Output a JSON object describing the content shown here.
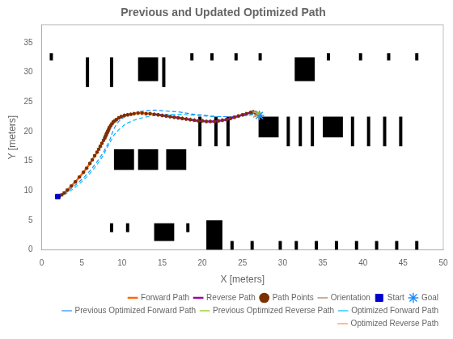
{
  "chart_data": {
    "type": "line",
    "title": "Previous and Updated Optimized Path",
    "x_label": "X [meters]",
    "y_label": "Y [meters]",
    "xlim": [
      0,
      50
    ],
    "ylim": [
      0,
      38
    ],
    "xticks": [
      0,
      5,
      10,
      15,
      20,
      25,
      30,
      35,
      40,
      45,
      50
    ],
    "yticks": [
      0,
      5,
      10,
      15,
      20,
      25,
      30,
      35
    ],
    "grid": false,
    "legend": "bottom",
    "obstacles": {
      "color": "#000000",
      "rectangles": [
        {
          "x": 1.0,
          "y": 32.0,
          "w": 0.4,
          "h": 1.2
        },
        {
          "x": 5.5,
          "y": 27.5,
          "w": 0.4,
          "h": 5.0
        },
        {
          "x": 8.5,
          "y": 27.5,
          "w": 0.4,
          "h": 5.0
        },
        {
          "x": 12.0,
          "y": 28.5,
          "w": 2.5,
          "h": 4.0
        },
        {
          "x": 15.0,
          "y": 27.5,
          "w": 0.4,
          "h": 5.0
        },
        {
          "x": 18.5,
          "y": 32.0,
          "w": 0.4,
          "h": 1.2
        },
        {
          "x": 21.0,
          "y": 32.0,
          "w": 0.4,
          "h": 1.2
        },
        {
          "x": 24.0,
          "y": 32.0,
          "w": 0.4,
          "h": 1.2
        },
        {
          "x": 27.0,
          "y": 32.0,
          "w": 0.4,
          "h": 1.2
        },
        {
          "x": 31.5,
          "y": 28.5,
          "w": 2.5,
          "h": 4.0
        },
        {
          "x": 35.5,
          "y": 32.0,
          "w": 0.4,
          "h": 1.2
        },
        {
          "x": 39.5,
          "y": 32.0,
          "w": 0.4,
          "h": 1.2
        },
        {
          "x": 43.0,
          "y": 32.0,
          "w": 0.4,
          "h": 1.2
        },
        {
          "x": 46.5,
          "y": 32.0,
          "w": 0.4,
          "h": 1.2
        },
        {
          "x": 9.0,
          "y": 13.5,
          "w": 2.5,
          "h": 3.5
        },
        {
          "x": 12.0,
          "y": 13.5,
          "w": 2.5,
          "h": 3.5
        },
        {
          "x": 15.5,
          "y": 13.5,
          "w": 2.5,
          "h": 3.5
        },
        {
          "x": 19.5,
          "y": 17.5,
          "w": 0.4,
          "h": 5.0
        },
        {
          "x": 21.5,
          "y": 17.5,
          "w": 0.4,
          "h": 5.0
        },
        {
          "x": 23.0,
          "y": 17.5,
          "w": 0.4,
          "h": 5.0
        },
        {
          "x": 27.0,
          "y": 19.0,
          "w": 2.5,
          "h": 3.5
        },
        {
          "x": 30.5,
          "y": 17.5,
          "w": 0.4,
          "h": 5.0
        },
        {
          "x": 32.0,
          "y": 17.5,
          "w": 0.4,
          "h": 5.0
        },
        {
          "x": 33.5,
          "y": 17.5,
          "w": 0.4,
          "h": 5.0
        },
        {
          "x": 35.0,
          "y": 19.0,
          "w": 2.5,
          "h": 3.5
        },
        {
          "x": 38.5,
          "y": 17.5,
          "w": 0.4,
          "h": 5.0
        },
        {
          "x": 40.5,
          "y": 17.5,
          "w": 0.4,
          "h": 5.0
        },
        {
          "x": 42.5,
          "y": 17.5,
          "w": 0.4,
          "h": 5.0
        },
        {
          "x": 44.5,
          "y": 17.5,
          "w": 0.4,
          "h": 5.0
        },
        {
          "x": 8.5,
          "y": 3.0,
          "w": 0.4,
          "h": 1.5
        },
        {
          "x": 10.5,
          "y": 3.0,
          "w": 0.4,
          "h": 1.5
        },
        {
          "x": 14.0,
          "y": 1.5,
          "w": 2.5,
          "h": 3.0
        },
        {
          "x": 18.0,
          "y": 3.0,
          "w": 0.4,
          "h": 1.5
        },
        {
          "x": 20.5,
          "y": 0.0,
          "w": 2.0,
          "h": 5.0
        },
        {
          "x": 23.5,
          "y": 0.0,
          "w": 0.4,
          "h": 1.5
        },
        {
          "x": 26.0,
          "y": 0.0,
          "w": 0.4,
          "h": 1.5
        },
        {
          "x": 29.5,
          "y": 0.0,
          "w": 0.4,
          "h": 1.5
        },
        {
          "x": 31.5,
          "y": 0.0,
          "w": 0.4,
          "h": 1.5
        },
        {
          "x": 34.0,
          "y": 0.0,
          "w": 0.4,
          "h": 1.5
        },
        {
          "x": 36.5,
          "y": 0.0,
          "w": 0.4,
          "h": 1.5
        },
        {
          "x": 39.0,
          "y": 0.0,
          "w": 0.4,
          "h": 1.5
        },
        {
          "x": 41.5,
          "y": 0.0,
          "w": 0.4,
          "h": 1.5
        },
        {
          "x": 44.0,
          "y": 0.0,
          "w": 0.4,
          "h": 1.5
        },
        {
          "x": 46.5,
          "y": 0.0,
          "w": 0.4,
          "h": 1.5
        }
      ]
    },
    "series": [
      {
        "name": "Forward Path",
        "type": "line",
        "marker": "none",
        "line_style": "solid",
        "color": "#FF6600",
        "x": [
          2.0,
          2.2,
          2.5,
          2.8,
          3.2,
          3.7,
          4.2,
          4.7,
          5.2,
          5.6,
          6.0,
          6.3,
          6.6,
          6.9,
          7.1,
          7.3,
          7.5,
          7.7,
          7.85,
          7.95,
          8.05,
          8.15,
          8.25,
          8.35,
          8.45,
          8.6,
          8.75,
          8.9,
          9.1,
          9.3,
          9.6,
          9.9,
          10.3,
          10.7,
          11.1,
          11.5,
          12.0,
          12.5,
          13.0,
          13.5,
          14.0
        ],
        "values": [
          9.0,
          9.1,
          9.3,
          9.6,
          10.1,
          10.8,
          11.5,
          12.3,
          13.1,
          13.8,
          14.6,
          15.2,
          15.9,
          16.5,
          17.0,
          17.5,
          18.0,
          18.5,
          18.9,
          19.2,
          19.5,
          19.8,
          20.1,
          20.4,
          20.7,
          21.0,
          21.3,
          21.6,
          21.8,
          22.0,
          22.3,
          22.5,
          22.7,
          22.8,
          22.9,
          23.0,
          23.1,
          23.1,
          23.0,
          23.0,
          22.9
        ]
      },
      {
        "name": "Reverse Path",
        "type": "line",
        "marker": "none",
        "line_style": "solid",
        "color": "#9900AA",
        "x": [
          14.0,
          14.5,
          15.0,
          15.5,
          16.0,
          16.5,
          17.0,
          17.5,
          18.0,
          18.5,
          19.0,
          19.5,
          20.0,
          20.5,
          21.0,
          21.5,
          22.0,
          22.5,
          23.0,
          23.5,
          24.0,
          24.5,
          25.0,
          25.5,
          26.0,
          26.3,
          26.6,
          26.85,
          27.0,
          27.1,
          27.2
        ],
        "values": [
          22.9,
          22.8,
          22.7,
          22.6,
          22.5,
          22.4,
          22.3,
          22.2,
          22.1,
          22.0,
          21.9,
          21.8,
          21.8,
          21.7,
          21.7,
          21.7,
          21.8,
          21.9,
          22.0,
          22.2,
          22.4,
          22.6,
          22.8,
          23.0,
          23.2,
          23.3,
          23.2,
          23.0,
          22.8,
          22.7,
          22.6
        ]
      },
      {
        "name": "Path Points",
        "type": "scatter",
        "marker": "circle",
        "color": "#7B3000",
        "x": [
          2.0,
          2.2,
          2.5,
          2.8,
          3.2,
          3.7,
          4.2,
          4.7,
          5.2,
          5.6,
          6.0,
          6.3,
          6.6,
          6.9,
          7.1,
          7.3,
          7.5,
          7.7,
          7.85,
          7.95,
          8.05,
          8.15,
          8.25,
          8.35,
          8.45,
          8.6,
          8.75,
          8.9,
          9.1,
          9.3,
          9.6,
          9.9,
          10.3,
          10.7,
          11.1,
          11.5,
          12.0,
          12.5,
          13.0,
          13.5,
          14.0,
          14.5,
          15.0,
          15.5,
          16.0,
          16.5,
          17.0,
          17.5,
          18.0,
          18.5,
          19.0,
          19.5,
          20.0,
          20.5,
          21.0,
          21.5,
          22.0,
          22.5,
          23.0,
          23.5,
          24.0,
          24.5,
          25.0,
          25.5,
          26.0,
          26.3,
          26.6,
          26.85,
          27.0,
          27.1,
          27.2
        ],
        "values": [
          9.0,
          9.1,
          9.3,
          9.6,
          10.1,
          10.8,
          11.5,
          12.3,
          13.1,
          13.8,
          14.6,
          15.2,
          15.9,
          16.5,
          17.0,
          17.5,
          18.0,
          18.5,
          18.9,
          19.2,
          19.5,
          19.8,
          20.1,
          20.4,
          20.7,
          21.0,
          21.3,
          21.6,
          21.8,
          22.0,
          22.3,
          22.5,
          22.7,
          22.8,
          22.9,
          23.0,
          23.1,
          23.1,
          23.0,
          23.0,
          22.9,
          22.8,
          22.7,
          22.6,
          22.5,
          22.4,
          22.3,
          22.2,
          22.1,
          22.0,
          21.9,
          21.8,
          21.8,
          21.7,
          21.7,
          21.7,
          21.8,
          21.9,
          22.0,
          22.2,
          22.4,
          22.6,
          22.8,
          23.0,
          23.2,
          23.3,
          23.2,
          23.0,
          22.8,
          22.7,
          22.6
        ]
      },
      {
        "name": "Orientation",
        "type": "scatter",
        "marker": "line",
        "color": "#7B3000",
        "x": [
          2.0,
          2.2,
          2.5,
          2.8,
          3.2,
          3.7,
          4.2,
          4.7,
          5.2,
          5.6,
          6.0,
          6.3,
          6.6,
          6.9,
          7.1,
          7.3,
          7.5,
          7.7,
          7.85,
          7.95,
          8.05,
          8.15,
          8.25,
          8.35,
          8.45,
          8.6,
          8.75,
          8.9,
          9.1,
          9.3,
          9.6,
          9.9,
          10.3,
          10.7,
          11.1,
          11.5,
          12.0,
          12.5,
          13.0,
          13.5,
          14.0,
          14.5,
          15.0,
          15.5,
          16.0,
          16.5,
          17.0,
          17.5,
          18.0,
          18.5,
          19.0,
          19.5,
          20.0,
          20.5,
          21.0,
          21.5,
          22.0,
          22.5,
          23.0,
          23.5,
          24.0,
          24.5,
          25.0,
          25.5,
          26.0,
          26.3,
          26.6,
          26.85,
          27.0,
          27.1,
          27.2
        ],
        "values": [
          9.0,
          9.1,
          9.3,
          9.6,
          10.1,
          10.8,
          11.5,
          12.3,
          13.1,
          13.8,
          14.6,
          15.2,
          15.9,
          16.5,
          17.0,
          17.5,
          18.0,
          18.5,
          18.9,
          19.2,
          19.5,
          19.8,
          20.1,
          20.4,
          20.7,
          21.0,
          21.3,
          21.6,
          21.8,
          22.0,
          22.3,
          22.5,
          22.7,
          22.8,
          22.9,
          23.0,
          23.1,
          23.1,
          23.0,
          23.0,
          22.9,
          22.8,
          22.7,
          22.6,
          22.5,
          22.4,
          22.3,
          22.2,
          22.1,
          22.0,
          21.9,
          21.8,
          21.8,
          21.7,
          21.7,
          21.7,
          21.8,
          21.9,
          22.0,
          22.2,
          22.4,
          22.6,
          22.8,
          23.0,
          23.2,
          23.3,
          23.2,
          23.0,
          22.8,
          22.7,
          22.6
        ]
      },
      {
        "name": "Start",
        "type": "scatter",
        "marker": "square",
        "color": "#0000CD",
        "x": [
          2.0
        ],
        "values": [
          9.0
        ]
      },
      {
        "name": "Goal",
        "type": "scatter",
        "marker": "star",
        "color": "#1E90FF",
        "x": [
          27.1
        ],
        "values": [
          22.7
        ]
      },
      {
        "name": "Previous Optimized Forward Path",
        "type": "line",
        "marker": "arrow",
        "line_style": "dashed",
        "color": "#1E90FF",
        "x": [
          2.0,
          2.5,
          3.0,
          3.7,
          4.5,
          5.3,
          6.1,
          6.8,
          7.3,
          7.7,
          8.0,
          8.25,
          8.45,
          8.6,
          8.75,
          8.9,
          9.1,
          9.3,
          9.6,
          10.0,
          10.5,
          11.0,
          12.0,
          13.0,
          14.0,
          15.0,
          16.0,
          17.0,
          18.0,
          19.0,
          20.0,
          21.0,
          22.0,
          23.0,
          24.0,
          25.0,
          26.0,
          26.8,
          27.2
        ],
        "values": [
          9.0,
          9.3,
          9.7,
          10.4,
          11.3,
          12.3,
          13.5,
          14.7,
          15.7,
          16.5,
          17.3,
          17.9,
          18.5,
          19.0,
          19.6,
          20.2,
          20.7,
          21.2,
          21.7,
          22.2,
          22.6,
          22.9,
          23.3,
          23.5,
          23.6,
          23.5,
          23.4,
          23.3,
          23.1,
          22.9,
          22.8,
          22.6,
          22.5,
          22.5,
          22.5,
          22.6,
          22.8,
          23.0,
          23.1
        ]
      },
      {
        "name": "Previous Optimized Reverse Path",
        "type": "line",
        "marker": "arrow",
        "line_style": "solid",
        "color": "#88CC00",
        "x": [
          26.8,
          27.2
        ],
        "values": [
          23.0,
          23.1
        ]
      },
      {
        "name": "Optimized Forward Path",
        "type": "line",
        "marker": "arrow",
        "line_style": "dashed",
        "color": "#00BFFF",
        "x": [
          2.0,
          2.5,
          3.0,
          3.7,
          4.5,
          5.3,
          6.0,
          6.6,
          7.1,
          7.5,
          7.8,
          8.0,
          8.2,
          8.4,
          8.6,
          8.8,
          9.0,
          9.3,
          9.7,
          10.2,
          10.8,
          11.5,
          12.5,
          13.5,
          14.5,
          15.5,
          16.5,
          17.5,
          18.5,
          19.5,
          20.5,
          21.5,
          22.5,
          23.5,
          24.5,
          25.5,
          26.5,
          27.0
        ],
        "values": [
          9.0,
          9.2,
          9.5,
          10.1,
          10.9,
          11.9,
          12.9,
          13.9,
          14.8,
          15.6,
          16.3,
          16.9,
          17.4,
          17.9,
          18.4,
          18.9,
          19.4,
          19.9,
          20.4,
          21.0,
          21.5,
          21.9,
          22.3,
          22.6,
          22.8,
          22.9,
          22.9,
          22.9,
          22.8,
          22.7,
          22.6,
          22.5,
          22.5,
          22.5,
          22.6,
          22.7,
          22.9,
          23.0
        ]
      },
      {
        "name": "Optimized Reverse Path",
        "type": "line",
        "marker": "arrow",
        "line_style": "solid",
        "color": "#FF8C50",
        "x": [
          26.5,
          27.0
        ],
        "values": [
          22.9,
          23.0
        ]
      }
    ]
  }
}
